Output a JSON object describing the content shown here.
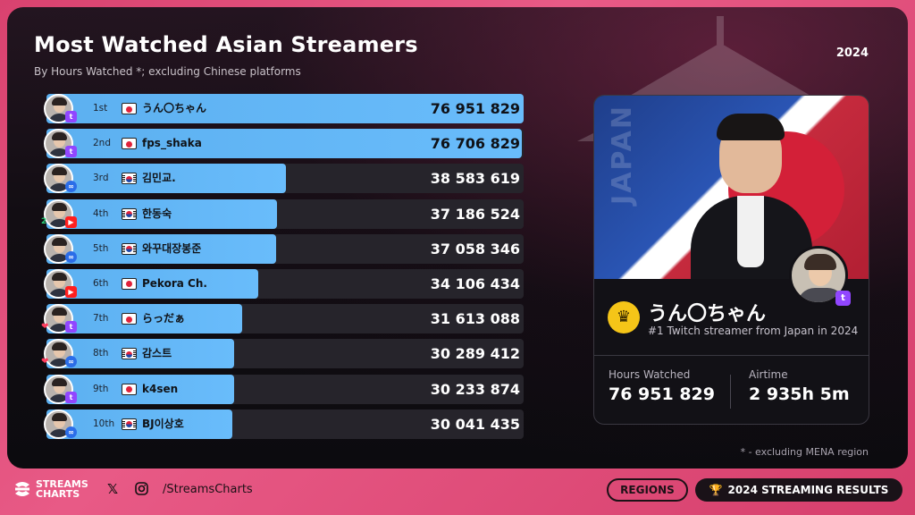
{
  "header": {
    "title": "Most Watched Asian Streamers",
    "subtitle": "By Hours Watched *; excluding Chinese platforms",
    "year": "2024"
  },
  "chart_data": {
    "type": "bar",
    "orientation": "horizontal",
    "title": "Most Watched Asian Streamers",
    "subtitle": "By Hours Watched *; excluding Chinese platforms",
    "xlim": [
      0,
      76951829
    ],
    "rows": [
      {
        "rank": "1st",
        "name": "うん〇ちゃん",
        "country": "jp",
        "platform": "twitch",
        "value": 76951829,
        "value_label": "76 951 829"
      },
      {
        "rank": "2nd",
        "name": "fps_shaka",
        "country": "jp",
        "platform": "twitch",
        "value": 76706829,
        "value_label": "76 706 829"
      },
      {
        "rank": "3rd",
        "name": "김민교.",
        "country": "kr",
        "platform": "kick",
        "value": 38583619,
        "value_label": "38 583 619"
      },
      {
        "rank": "4th",
        "name": "한동숙",
        "country": "kr",
        "platform": "youtube",
        "value": 37186524,
        "value_label": "37 186 524"
      },
      {
        "rank": "5th",
        "name": "와꾸대장봉준",
        "country": "kr",
        "platform": "kick",
        "value": 37058346,
        "value_label": "37 058 346"
      },
      {
        "rank": "6th",
        "name": "Pekora Ch.",
        "country": "jp",
        "platform": "youtube",
        "value": 34106434,
        "value_label": "34 106 434"
      },
      {
        "rank": "7th",
        "name": "らっだぁ",
        "country": "jp",
        "platform": "twitch",
        "value": 31613088,
        "value_label": "31 613 088"
      },
      {
        "rank": "8th",
        "name": "감스트",
        "country": "kr",
        "platform": "kick",
        "value": 30289412,
        "value_label": "30 289 412"
      },
      {
        "rank": "9th",
        "name": "k4sen",
        "country": "jp",
        "platform": "twitch",
        "value": 30233874,
        "value_label": "30 233 874"
      },
      {
        "rank": "10th",
        "name": "BJ이상호",
        "country": "kr",
        "platform": "kick",
        "value": 30041435,
        "value_label": "30 041 435"
      }
    ],
    "bar_color": "#69bcfb",
    "track_color": "#26242b"
  },
  "card": {
    "country_label": "JAPAN",
    "name": "うん〇ちゃん",
    "description": "#1 Twitch streamer from Japan in 2024",
    "hours_label": "Hours Watched",
    "hours_value": "76 951 829",
    "airtime_label": "Airtime",
    "airtime_value": "2 935h 5m"
  },
  "footnote": "* - excluding MENA region",
  "footer": {
    "logo_line1": "STREAMS",
    "logo_line2": "CHARTS",
    "handle": "/StreamsCharts",
    "regions_label": "REGIONS",
    "results_label": "2024 STREAMING RESULTS"
  },
  "colors": {
    "accent_pink": "#e0507d",
    "twitch": "#9146ff",
    "youtube": "#ff1f1f",
    "kick": "#2b6de8"
  }
}
